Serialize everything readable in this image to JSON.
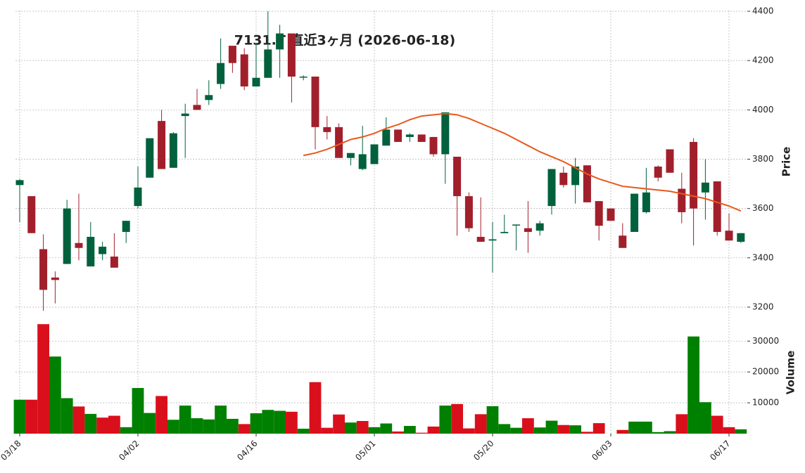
{
  "chart_data": {
    "type": "candlestick",
    "title": "7131.T 直近3ヶ月 (2026-06-18)",
    "categories": [
      "03/18",
      null,
      null,
      null,
      null,
      null,
      null,
      null,
      null,
      null,
      "04/02",
      null,
      null,
      null,
      null,
      null,
      null,
      null,
      null,
      null,
      "04/16",
      null,
      null,
      null,
      null,
      null,
      null,
      null,
      null,
      null,
      "05/01",
      null,
      null,
      null,
      null,
      null,
      null,
      null,
      null,
      null,
      "05/20",
      null,
      null,
      null,
      null,
      null,
      null,
      null,
      null,
      null,
      "06/03",
      null,
      null,
      null,
      null,
      null,
      null,
      null,
      null,
      null,
      "06/17",
      null
    ],
    "open": [
      3695,
      3650,
      3435,
      3320,
      3375,
      3460,
      3365,
      3415,
      3405,
      3505,
      3610,
      3725,
      3955,
      3765,
      3975,
      4020,
      4040,
      4105,
      4260,
      4225,
      4095,
      4130,
      4245,
      4310,
      4135,
      4135,
      3930,
      3930,
      3805,
      3760,
      3780,
      3855,
      3920,
      3890,
      3900,
      3890,
      3820,
      3810,
      3650,
      3485,
      3470,
      3500,
      3535,
      3520,
      3510,
      3610,
      3745,
      3695,
      3775,
      3630,
      3600,
      3490,
      3505,
      3585,
      3770,
      3840,
      3680,
      3870,
      3665,
      3710,
      3510,
      3465
    ],
    "high": [
      3720,
      3650,
      3495,
      3345,
      3635,
      3660,
      3545,
      3465,
      3500,
      3550,
      3770,
      3885,
      4000,
      3910,
      4025,
      4085,
      4120,
      4290,
      4260,
      4250,
      4270,
      4400,
      4345,
      4310,
      4140,
      4135,
      3975,
      3945,
      3825,
      3935,
      3860,
      3970,
      3920,
      3905,
      3900,
      3890,
      3990,
      3810,
      3665,
      3645,
      3545,
      3575,
      3535,
      3630,
      3550,
      3760,
      3770,
      3805,
      3775,
      3630,
      3600,
      3540,
      3660,
      3765,
      3775,
      3840,
      3745,
      3885,
      3800,
      3710,
      3580,
      3500
    ],
    "low": [
      3545,
      3500,
      3185,
      3215,
      3375,
      3390,
      3365,
      3390,
      3360,
      3460,
      3600,
      3725,
      3760,
      3765,
      3805,
      4000,
      4020,
      4085,
      4150,
      4080,
      4095,
      4130,
      4130,
      4030,
      4120,
      3840,
      3880,
      3805,
      3775,
      3755,
      3780,
      3855,
      3870,
      3870,
      3870,
      3810,
      3700,
      3490,
      3505,
      3465,
      3340,
      3500,
      3430,
      3420,
      3490,
      3575,
      3685,
      3620,
      3625,
      3470,
      3550,
      3440,
      3505,
      3580,
      3710,
      3745,
      3540,
      3450,
      3555,
      3490,
      3470,
      3460
    ],
    "close": [
      3715,
      3500,
      3270,
      3310,
      3600,
      3440,
      3485,
      3445,
      3360,
      3550,
      3685,
      3885,
      3760,
      3905,
      3985,
      4000,
      4060,
      4190,
      4190,
      4095,
      4130,
      4245,
      4310,
      4135,
      4135,
      3930,
      3910,
      3805,
      3825,
      3820,
      3860,
      3920,
      3870,
      3900,
      3870,
      3820,
      3990,
      3650,
      3520,
      3465,
      3475,
      3505,
      3535,
      3505,
      3540,
      3760,
      3695,
      3770,
      3625,
      3530,
      3550,
      3440,
      3660,
      3665,
      3725,
      3745,
      3585,
      3600,
      3705,
      3505,
      3470,
      3500
    ],
    "up_color": "#00613c",
    "down_color": "#a11f2b",
    "ylabel": "Price",
    "ylim": [
      3160,
      4400
    ],
    "yticks": [
      3200,
      3400,
      3600,
      3800,
      4000,
      4200,
      4400
    ],
    "moving_average": {
      "color": "#e8581c",
      "values": [
        null,
        null,
        null,
        null,
        null,
        null,
        null,
        null,
        null,
        null,
        null,
        null,
        null,
        null,
        null,
        null,
        null,
        null,
        null,
        null,
        null,
        null,
        null,
        null,
        3815,
        3825,
        3840,
        3860,
        3880,
        3890,
        3905,
        3925,
        3940,
        3960,
        3975,
        3980,
        3985,
        3980,
        3965,
        3945,
        3925,
        3905,
        3880,
        3855,
        3830,
        3810,
        3790,
        3765,
        3740,
        3720,
        3705,
        3690,
        3685,
        3680,
        3675,
        3670,
        3660,
        3650,
        3640,
        3625,
        3610,
        3590
      ]
    },
    "volume": {
      "ylabel": "Volume",
      "up_color": "#008000",
      "down_color": "#d9101c",
      "values": [
        11000,
        11000,
        35500,
        25000,
        11500,
        8800,
        6400,
        5200,
        5800,
        2100,
        14800,
        6700,
        12200,
        4500,
        9100,
        5000,
        4600,
        9100,
        4800,
        3100,
        6600,
        7700,
        7400,
        7100,
        1600,
        16700,
        1900,
        6200,
        3600,
        4100,
        2100,
        3300,
        700,
        2500,
        300,
        2300,
        9100,
        9600,
        1700,
        6300,
        8900,
        3100,
        1900,
        5000,
        2000,
        4200,
        2800,
        2700,
        600,
        3400,
        0,
        1200,
        3900,
        3900,
        500,
        800,
        6300,
        31500,
        10200,
        5800,
        2100,
        1400
      ],
      "ylim": [
        0,
        36000
      ],
      "yticks": [
        10000,
        20000,
        30000
      ]
    },
    "grid": true
  }
}
